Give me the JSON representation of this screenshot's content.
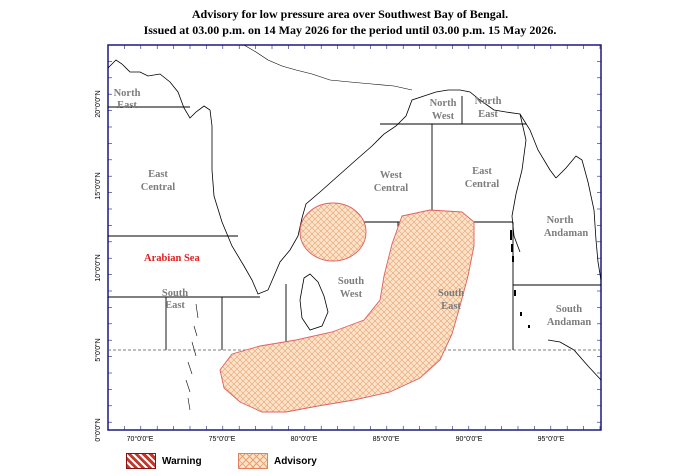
{
  "title": {
    "line1": "Advisory for low pressure area over Southwest Bay of Bengal.",
    "line2": "Issued at 03.00 p.m. on 14 May 2026 for the period until 03.00 p.m. 15 May 2026."
  },
  "regions": {
    "arabian_north_east": [
      "North",
      "East"
    ],
    "arabian_east_central": [
      "East",
      "Central"
    ],
    "arabian_south_east": [
      "South",
      "East"
    ],
    "bay_north_west": [
      "North",
      "West"
    ],
    "bay_north_east": [
      "North",
      "East"
    ],
    "bay_west_central": [
      "West",
      "Central"
    ],
    "bay_east_central": [
      "East",
      "Central"
    ],
    "bay_south_west": [
      "South",
      "West"
    ],
    "bay_south_east": [
      "South",
      "East"
    ],
    "north_andaman": [
      "North",
      "Andaman"
    ],
    "south_andaman": [
      "South",
      "Andaman"
    ]
  },
  "sea_label": "Arabian Sea",
  "axes": {
    "x_ticks": [
      "70°0'0\"E",
      "75°0'0\"E",
      "80°0'0\"E",
      "85°0'0\"E",
      "90°0'0\"E",
      "95°0'0\"E"
    ],
    "y_ticks": [
      "0°0'0\"N",
      "5°0'0\"N",
      "10°0'0\"N",
      "15°0'0\"N",
      "20°0'0\"N"
    ]
  },
  "legend": {
    "warning": "Warning",
    "advisory": "Advisory"
  },
  "colors": {
    "warning": "#c0392b",
    "advisory_fill": "#fbe3c9",
    "advisory_hatch": "#e8a070",
    "advisory_edge": "#e06060",
    "frame": "#1a1a80"
  }
}
